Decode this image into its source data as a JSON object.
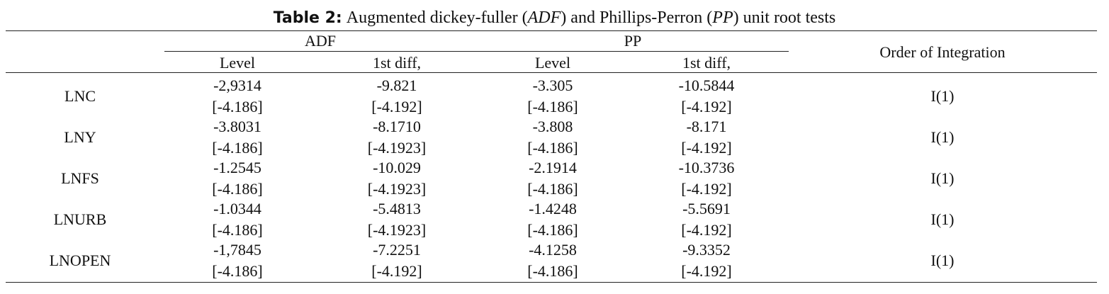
{
  "title": {
    "label": "Table 2:",
    "parts": [
      "Augmented dickey-fuller (",
      "ADF",
      ") and Phillips-Perron (",
      "PP",
      ") unit root tests"
    ]
  },
  "table": {
    "groups": [
      "ADF",
      "PP"
    ],
    "subheaders": [
      "Level",
      "1st diff,",
      "Level",
      "1st diff,"
    ],
    "order_header": "Order of Integration",
    "rows": [
      {
        "variable": "LNC",
        "stats": [
          "-2,9314",
          "-9.821",
          "-3.305",
          "-10.5844"
        ],
        "critical": [
          "[-4.186]",
          "[-4.192]",
          "[-4.186]",
          "[-4.192]"
        ],
        "order": "I(1)"
      },
      {
        "variable": "LNY",
        "stats": [
          "-3.8031",
          "-8.1710",
          "-3.808",
          "-8.171"
        ],
        "critical": [
          "[-4.186]",
          "[-4.1923]",
          "[-4.186]",
          "[-4.192]"
        ],
        "order": "I(1)"
      },
      {
        "variable": "LNFS",
        "stats": [
          "-1.2545",
          "-10.029",
          "-2.1914",
          "-10.3736"
        ],
        "critical": [
          "[-4.186]",
          "[-4.1923]",
          "[-4.186]",
          "[-4.192]"
        ],
        "order": "I(1)"
      },
      {
        "variable": "LNURB",
        "stats": [
          "-1.0344",
          "-5.4813",
          "-1.4248",
          "-5.5691"
        ],
        "critical": [
          "[-4.186]",
          "[-4.1923]",
          "[-4.186]",
          "[-4.192]"
        ],
        "order": "I(1)"
      },
      {
        "variable": "LNOPEN",
        "stats": [
          "-1,7845",
          "-7.2251",
          "-4.1258",
          "-9.3352"
        ],
        "critical": [
          "[-4.186]",
          "[-4.192]",
          "[-4.186]",
          "[-4.192]"
        ],
        "order": "I(1)"
      }
    ]
  }
}
